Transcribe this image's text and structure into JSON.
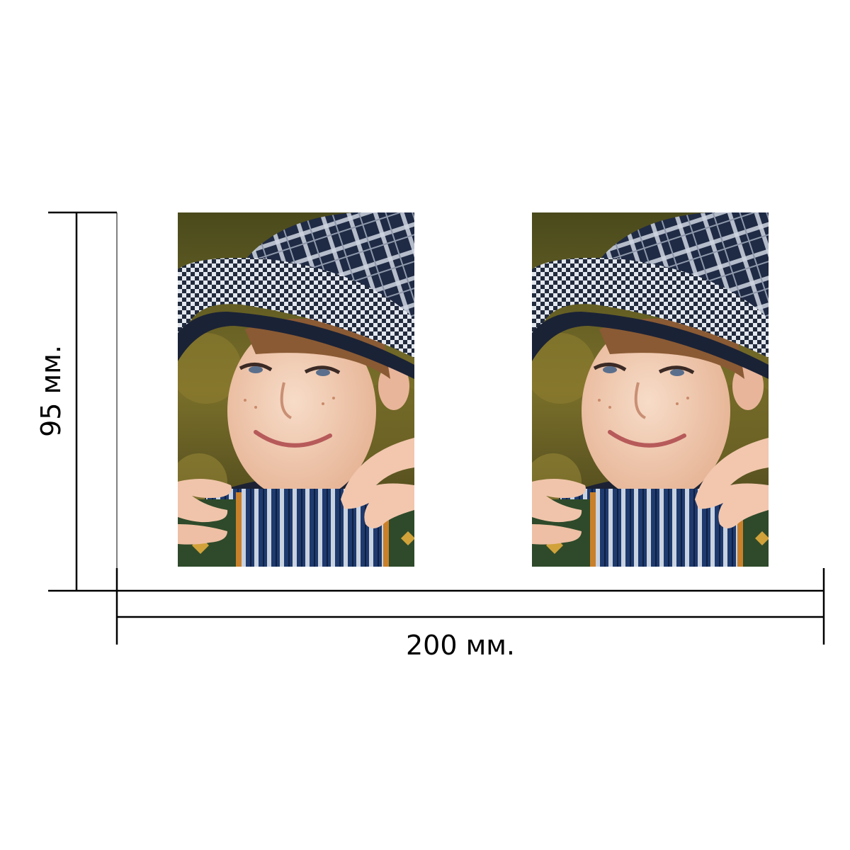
{
  "dimensions": {
    "height_label": "95 мм.",
    "width_label": "200 мм."
  },
  "photos": [
    {
      "name": "photo-left",
      "subject": "boy-in-plaid-hat-with-accordion"
    },
    {
      "name": "photo-right",
      "subject": "boy-in-plaid-hat-with-accordion"
    }
  ],
  "colors": {
    "line": "#000000",
    "hat_dark": "#1f2a44",
    "hat_light": "#cfd6e2",
    "background_green": "#5c5a22",
    "skin": "#f0c9b0",
    "accordion_blue": "#1e3a6e"
  }
}
